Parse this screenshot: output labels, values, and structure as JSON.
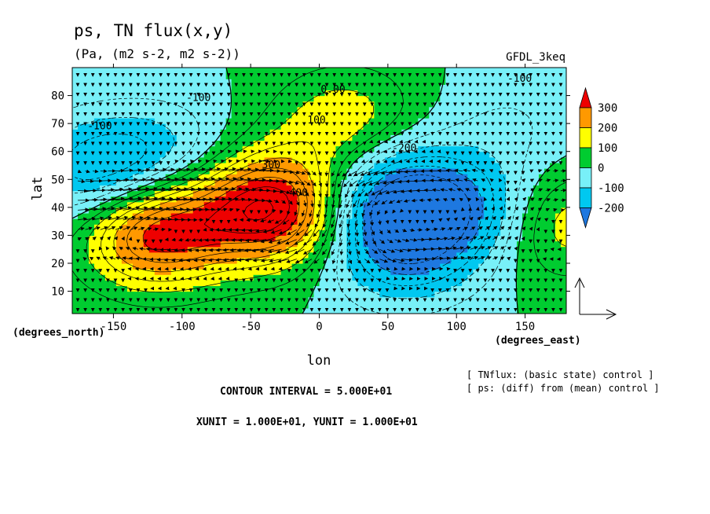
{
  "figure": {
    "title": "ps, TN flux(x,y)",
    "subtitle": "(Pa, (m2 s-2, m2 s-2))",
    "experiment_label": "GFDL_3keq",
    "contour_interval_text": "CONTOUR INTERVAL = 5.000E+01",
    "unit_text": "XUNIT = 1.000E+01, YUNIT = 1.000E+01",
    "note_line1": "[ TNflux: (basic state) control ]",
    "note_line2": "[ ps: (diff) from (mean) control ]"
  },
  "chart_data": {
    "type": "heatmap",
    "title": "ps, TN flux(x,y)",
    "subtitle": "(Pa, (m2 s-2, m2 s-2))",
    "xlabel": "lon",
    "ylabel": "lat",
    "x_units_label": "(degrees_east)",
    "y_units_label": "(degrees_north)",
    "xlim": [
      -180,
      180
    ],
    "ylim": [
      2,
      90
    ],
    "x_ticks": [
      -150,
      -100,
      -50,
      0,
      50,
      100,
      150
    ],
    "x_tick_labels": [
      "-150",
      "-100",
      "-50",
      "0",
      "50",
      "100",
      "150"
    ],
    "y_ticks": [
      10,
      20,
      30,
      40,
      50,
      60,
      70,
      80
    ],
    "y_tick_labels": [
      "10",
      "20",
      "30",
      "40",
      "50",
      "60",
      "70",
      "80"
    ],
    "contour_interval": 50,
    "colorbar": {
      "levels": [
        -200,
        -100,
        0,
        100,
        200,
        300
      ],
      "tick_labels": [
        "300",
        "200",
        "100",
        "0",
        "-100",
        "-200"
      ],
      "colors": [
        "#1e78e0",
        "#00c8f0",
        "#78f0f8",
        "#00cc30",
        "#ffff00",
        "#ff9900",
        "#ee0000"
      ]
    },
    "contour_labels": [
      {
        "text": "-100",
        "x": -160,
        "y": 68
      },
      {
        "text": "-100",
        "x": -88,
        "y": 78
      },
      {
        "text": "0.00",
        "x": 10,
        "y": 81
      },
      {
        "text": "-100",
        "x": 146,
        "y": 85
      },
      {
        "text": "100",
        "x": -2,
        "y": 70
      },
      {
        "text": "300",
        "x": -35,
        "y": 54
      },
      {
        "text": "400",
        "x": -15,
        "y": 44
      },
      {
        "text": "-200",
        "x": 62,
        "y": 60
      }
    ],
    "pressure_anomaly_centers": [
      {
        "lon": -160,
        "lat": 52,
        "value": -200
      },
      {
        "lon": -110,
        "lat": 58,
        "value": -100
      },
      {
        "lon": -35,
        "lat": 40,
        "value": 400
      },
      {
        "lon": -120,
        "lat": 32,
        "value": 350
      },
      {
        "lon": 55,
        "lat": 45,
        "value": -250
      },
      {
        "lon": 60,
        "lat": 25,
        "value": -200
      },
      {
        "lon": 125,
        "lat": 38,
        "value": -200
      },
      {
        "lon": 20,
        "lat": 70,
        "value": 150
      },
      {
        "lon": 140,
        "lat": 70,
        "value": -50
      },
      {
        "lon": 165,
        "lat": 35,
        "value": 200
      }
    ],
    "flux_reference_vector": {
      "x": 10,
      "y": 10
    }
  }
}
